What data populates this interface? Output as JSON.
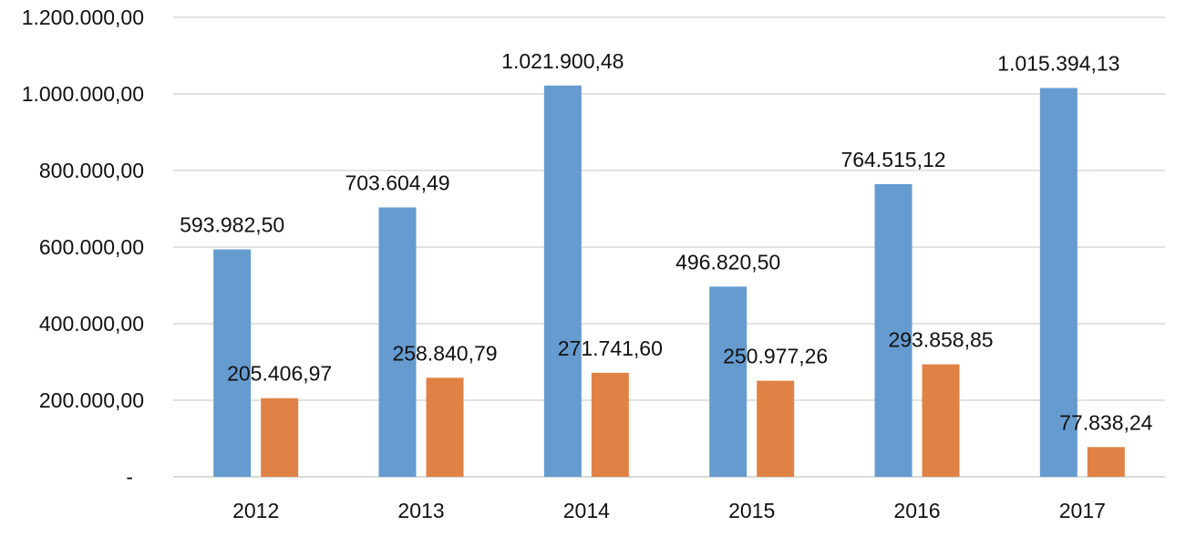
{
  "chart_data": {
    "type": "bar",
    "categories": [
      "2012",
      "2013",
      "2014",
      "2015",
      "2016",
      "2017"
    ],
    "series": [
      {
        "values": [
          593982.5,
          703604.49,
          1021900.48,
          496820.5,
          764515.12,
          1015394.13
        ],
        "labels": [
          "593.982,50",
          "703.604,49",
          "1.021.900,48",
          "496.820,50",
          "764.515,12",
          "1.015.394,13"
        ],
        "color": "#669bd0"
      },
      {
        "values": [
          205406.97,
          258840.79,
          271741.6,
          250977.26,
          293858.85,
          77838.24
        ],
        "labels": [
          "205.406,97",
          "258.840,79",
          "271.741,60",
          "250.977,26",
          "293.858,85",
          "77.838,24"
        ],
        "color": "#e08245"
      }
    ],
    "yticks": [
      {
        "value": 0,
        "label": "-"
      },
      {
        "value": 200000,
        "label": "200.000,00"
      },
      {
        "value": 400000,
        "label": "400.000,00"
      },
      {
        "value": 600000,
        "label": "600.000,00"
      },
      {
        "value": 800000,
        "label": "800.000,00"
      },
      {
        "value": 1000000,
        "label": "1.000.000,00"
      },
      {
        "value": 1200000,
        "label": "1.200.000,00"
      }
    ],
    "ylim": [
      0,
      1200000
    ],
    "grid": true,
    "legend": "none"
  }
}
